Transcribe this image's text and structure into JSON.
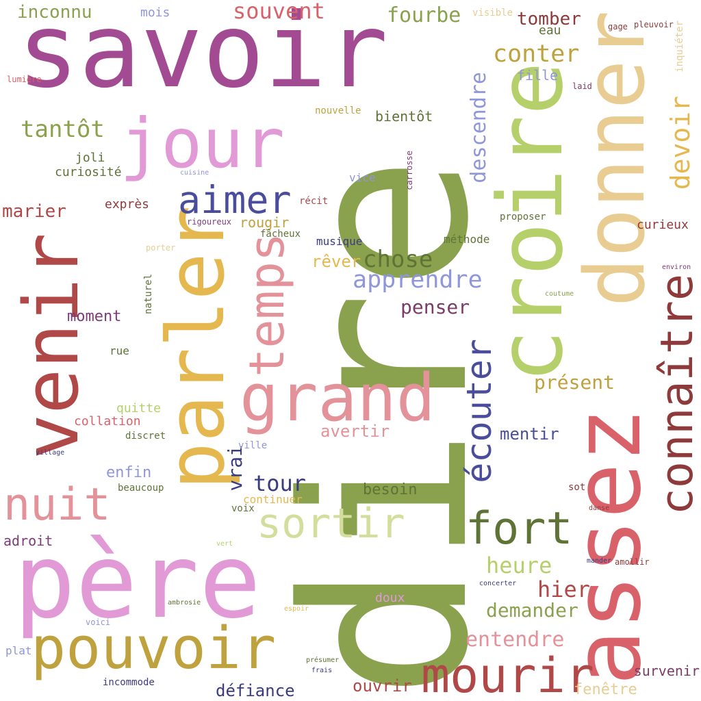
{
  "palette": {
    "plum": "#a24b92",
    "olive": "#8aa14e",
    "brick": "#b04848",
    "pink": "#e19ad6",
    "lime": "#b5d06a",
    "sand": "#e8cc92",
    "rose": "#d9626a",
    "gold": "#e5b84f",
    "salmon": "#e3929a",
    "mustard": "#bfa23e",
    "navy": "#4a4d9b",
    "periwinkle": "#8f96d9",
    "sage": "#d4de9c",
    "forest": "#5f7336",
    "maroon": "#8e3a3a",
    "aubergine": "#7b3b6a",
    "indigo": "#393c80",
    "grape": "#7d3b7a"
  },
  "words": [
    {
      "t": "dire",
      "c": "olive"
    },
    {
      "t": "savoir",
      "c": "plum"
    },
    {
      "t": "venir",
      "c": "brick"
    },
    {
      "t": "père",
      "c": "pink"
    },
    {
      "t": "croire",
      "c": "lime"
    },
    {
      "t": "donner",
      "c": "sand"
    },
    {
      "t": "assez",
      "c": "rose"
    },
    {
      "t": "parler",
      "c": "gold"
    },
    {
      "t": "jour",
      "c": "pink"
    },
    {
      "t": "grand",
      "c": "salmon"
    },
    {
      "t": "pouvoir",
      "c": "mustard"
    },
    {
      "t": "mourir",
      "c": "brick"
    },
    {
      "t": "temps",
      "c": "salmon"
    },
    {
      "t": "nuit",
      "c": "salmon"
    },
    {
      "t": "connaître",
      "c": "maroon"
    },
    {
      "t": "fort",
      "c": "forest"
    },
    {
      "t": "sortir",
      "c": "sage"
    },
    {
      "t": "aimer",
      "c": "navy"
    },
    {
      "t": "écouter",
      "c": "navy"
    },
    {
      "t": "apprendre",
      "c": "periwinkle"
    },
    {
      "t": "devoir",
      "c": "gold"
    },
    {
      "t": "conter",
      "c": "mustard"
    },
    {
      "t": "chose",
      "c": "forest"
    },
    {
      "t": "tantôt",
      "c": "olive"
    },
    {
      "t": "souvent",
      "c": "rose"
    },
    {
      "t": "fourbe",
      "c": "olive"
    },
    {
      "t": "tour",
      "c": "indigo"
    },
    {
      "t": "entendre",
      "c": "salmon"
    },
    {
      "t": "demander",
      "c": "olive"
    },
    {
      "t": "heure",
      "c": "lime"
    },
    {
      "t": "hier",
      "c": "brick"
    },
    {
      "t": "présent",
      "c": "mustard"
    },
    {
      "t": "descendre",
      "c": "periwinkle"
    },
    {
      "t": "penser",
      "c": "aubergine"
    },
    {
      "t": "tomber",
      "c": "maroon"
    },
    {
      "t": "marier",
      "c": "brick"
    },
    {
      "t": "inconnu",
      "c": "olive"
    },
    {
      "t": "rêver",
      "c": "gold"
    },
    {
      "t": "avertir",
      "c": "salmon"
    },
    {
      "t": "mentir",
      "c": "navy"
    },
    {
      "t": "défiance",
      "c": "indigo"
    },
    {
      "t": "ouvrir",
      "c": "brick"
    },
    {
      "t": "survenir",
      "c": "aubergine"
    },
    {
      "t": "fenêtre",
      "c": "sand"
    },
    {
      "t": "vrai",
      "c": "indigo"
    },
    {
      "t": "besoin",
      "c": "forest"
    },
    {
      "t": "enfin",
      "c": "periwinkle"
    },
    {
      "t": "bientôt",
      "c": "forest"
    },
    {
      "t": "moment",
      "c": "grape"
    },
    {
      "t": "fille",
      "c": "periwinkle"
    },
    {
      "t": "curieux",
      "c": "maroon"
    },
    {
      "t": "rougir",
      "c": "mustard"
    },
    {
      "t": "collation",
      "c": "rose"
    },
    {
      "t": "adroit",
      "c": "grape"
    },
    {
      "t": "quitte",
      "c": "lime"
    },
    {
      "t": "joli",
      "c": "forest"
    },
    {
      "t": "curiosité",
      "c": "forest"
    },
    {
      "t": "exprès",
      "c": "maroon"
    },
    {
      "t": "mois",
      "c": "periwinkle"
    },
    {
      "t": "eau",
      "c": "forest"
    },
    {
      "t": "musique",
      "c": "indigo"
    },
    {
      "t": "méthode",
      "c": "forest"
    },
    {
      "t": "continuer",
      "c": "gold"
    },
    {
      "t": "beaucoup",
      "c": "forest"
    },
    {
      "t": "voix",
      "c": "forest"
    },
    {
      "t": "doux",
      "c": "pink"
    },
    {
      "t": "sot",
      "c": "maroon"
    },
    {
      "t": "proposer",
      "c": "forest"
    },
    {
      "t": "incommode",
      "c": "indigo"
    },
    {
      "t": "fâcheux",
      "c": "forest"
    },
    {
      "t": "vice",
      "c": "periwinkle"
    },
    {
      "t": "rue",
      "c": "forest"
    },
    {
      "t": "naturel",
      "c": "forest"
    },
    {
      "t": "visible",
      "c": "sand"
    },
    {
      "t": "discret",
      "c": "forest"
    },
    {
      "t": "plat",
      "c": "periwinkle"
    },
    {
      "t": "nouvelle",
      "c": "mustard"
    },
    {
      "t": "inquiéter",
      "c": "sand"
    },
    {
      "t": "pleuvoir",
      "c": "maroon"
    },
    {
      "t": "gage",
      "c": "maroon"
    },
    {
      "t": "récit",
      "c": "brick"
    },
    {
      "t": "ville",
      "c": "periwinkle"
    },
    {
      "t": "voici",
      "c": "periwinkle"
    },
    {
      "t": "laid",
      "c": "aubergine"
    },
    {
      "t": "lumière",
      "c": "rose"
    },
    {
      "t": "rigoureux",
      "c": "grape"
    },
    {
      "t": "porter",
      "c": "sand"
    },
    {
      "t": "carrosse",
      "c": "grape"
    },
    {
      "t": "amollir",
      "c": "maroon"
    },
    {
      "t": "danse",
      "c": "maroon"
    },
    {
      "t": "environ",
      "c": "grape"
    },
    {
      "t": "concerter",
      "c": "indigo"
    },
    {
      "t": "vert",
      "c": "lime"
    },
    {
      "t": "espoir",
      "c": "gold"
    },
    {
      "t": "frais",
      "c": "indigo"
    },
    {
      "t": "présumer",
      "c": "forest"
    },
    {
      "t": "mander",
      "c": "indigo"
    },
    {
      "t": "coutume",
      "c": "olive"
    },
    {
      "t": "cuisine",
      "c": "periwinkle"
    },
    {
      "t": "village",
      "c": "indigo"
    },
    {
      "t": "ambrosie",
      "c": "forest"
    }
  ]
}
